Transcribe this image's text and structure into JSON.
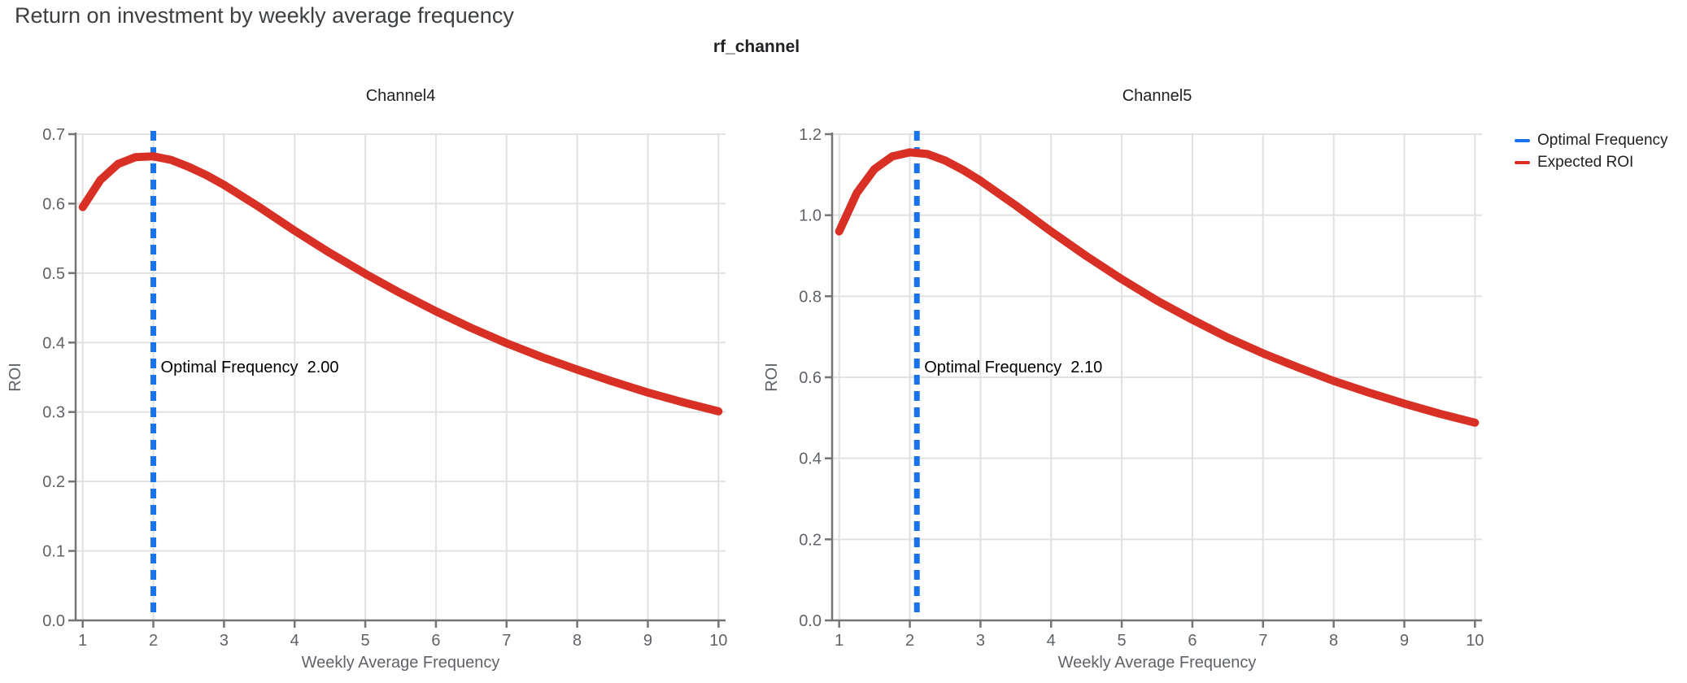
{
  "page": {
    "title": "Return on investment by weekly average frequency"
  },
  "figure": {
    "title": "rf_channel"
  },
  "legend": [
    {
      "name": "optimal-frequency",
      "label": "Optimal Frequency",
      "color": "#1a73e8"
    },
    {
      "name": "expected-roi",
      "label": "Expected ROI",
      "color": "#d93025"
    }
  ],
  "colors": {
    "curve_red": "#d93025",
    "optimal_blue": "#1a73e8",
    "grid": "#e1e1e1",
    "axis": "#757575",
    "tick_text": "#5f6368",
    "title_text": "#3c4043",
    "annotation_text": "#000000"
  },
  "chart_data": [
    {
      "type": "line",
      "title": "Channel4",
      "xlabel": "Weekly Average Frequency",
      "ylabel": "ROI",
      "xlim": [
        0.9,
        10.1
      ],
      "ylim": [
        0.0,
        0.7
      ],
      "grid": true,
      "xticks": [
        1,
        2,
        3,
        4,
        5,
        6,
        7,
        8,
        9,
        10
      ],
      "ytick_labels": [
        "0.0",
        "0.1",
        "0.2",
        "0.3",
        "0.4",
        "0.5",
        "0.6",
        "0.7"
      ],
      "ytick_values": [
        0.0,
        0.1,
        0.2,
        0.3,
        0.4,
        0.5,
        0.6,
        0.7
      ],
      "optimal_frequency": {
        "label": "Optimal Frequency",
        "value_text": "2.00",
        "x": 2.0
      },
      "series": [
        {
          "name": "Expected ROI",
          "x": [
            1.0,
            1.25,
            1.5,
            1.75,
            2.0,
            2.25,
            2.5,
            2.75,
            3.0,
            3.5,
            4.0,
            4.5,
            5.0,
            5.5,
            6.0,
            6.5,
            7.0,
            7.5,
            8.0,
            8.5,
            9.0,
            9.5,
            10.0
          ],
          "y": [
            0.595,
            0.634,
            0.657,
            0.667,
            0.668,
            0.663,
            0.653,
            0.641,
            0.627,
            0.595,
            0.561,
            0.529,
            0.499,
            0.471,
            0.445,
            0.421,
            0.399,
            0.379,
            0.361,
            0.344,
            0.328,
            0.314,
            0.301
          ]
        }
      ]
    },
    {
      "type": "line",
      "title": "Channel5",
      "xlabel": "Weekly Average Frequency",
      "ylabel": "ROI",
      "xlim": [
        0.9,
        10.1
      ],
      "ylim": [
        0.0,
        1.2
      ],
      "grid": true,
      "xticks": [
        1,
        2,
        3,
        4,
        5,
        6,
        7,
        8,
        9,
        10
      ],
      "ytick_labels": [
        "0.0",
        "0.2",
        "0.4",
        "0.6",
        "0.8",
        "1.0",
        "1.2"
      ],
      "ytick_values": [
        0.0,
        0.2,
        0.4,
        0.6,
        0.8,
        1.0,
        1.2
      ],
      "optimal_frequency": {
        "label": "Optimal Frequency",
        "value_text": "2.10",
        "x": 2.1
      },
      "series": [
        {
          "name": "Expected ROI",
          "x": [
            1.0,
            1.25,
            1.5,
            1.75,
            2.0,
            2.25,
            2.5,
            2.75,
            3.0,
            3.5,
            4.0,
            4.5,
            5.0,
            5.5,
            6.0,
            6.5,
            7.0,
            7.5,
            8.0,
            8.5,
            9.0,
            9.5,
            10.0
          ],
          "y": [
            0.96,
            1.055,
            1.114,
            1.145,
            1.155,
            1.151,
            1.135,
            1.112,
            1.085,
            1.024,
            0.96,
            0.899,
            0.842,
            0.789,
            0.742,
            0.698,
            0.659,
            0.624,
            0.591,
            0.562,
            0.535,
            0.51,
            0.488
          ]
        }
      ]
    }
  ]
}
